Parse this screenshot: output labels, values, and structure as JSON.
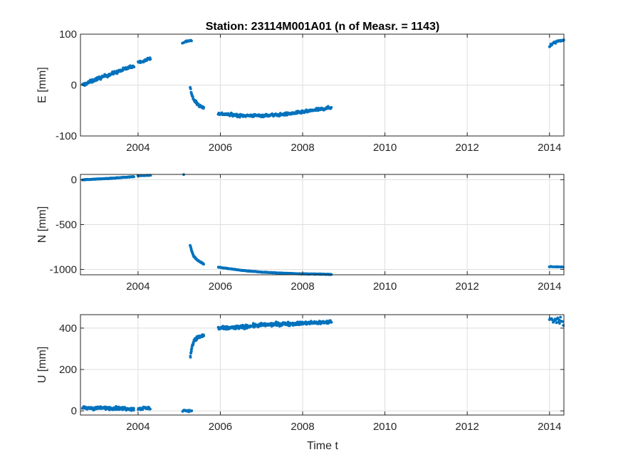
{
  "chart_data": {
    "type": "scatter",
    "title": "Station: 23114M001A01 (n of Measr. = 1143)",
    "xlabel": "Time t",
    "x_ticks": [
      2004,
      2006,
      2008,
      2010,
      2012,
      2014
    ],
    "x_tick_labels": [
      "2004",
      "2006",
      "2008",
      "2010",
      "2012",
      "2014"
    ],
    "xlim": [
      2002.6,
      2014.35
    ],
    "grid": true,
    "marker_color": "#0072BD",
    "panels": [
      {
        "ylabel": "E [mm]",
        "ylim": [
          -100,
          100
        ],
        "y_ticks": [
          -100,
          0,
          100
        ],
        "y_tick_labels": [
          "-100",
          "0",
          "100"
        ],
        "segments": [
          {
            "t": [
              2002.65,
              2003.0,
              2003.5,
              2003.9
            ],
            "v": [
              0,
              12,
              26,
              38
            ],
            "noise": 3,
            "n": 150
          },
          {
            "t": [
              2004.0,
              2004.15,
              2004.3
            ],
            "v": [
              45,
              48,
              53
            ],
            "noise": 2,
            "n": 25
          },
          {
            "t": [
              2005.08,
              2005.2,
              2005.3
            ],
            "v": [
              83,
              86,
              88
            ],
            "noise": 1.5,
            "n": 15
          },
          {
            "t": [
              2005.27,
              2005.3,
              2005.35,
              2005.45,
              2005.6
            ],
            "v": [
              -5,
              -18,
              -28,
              -38,
              -45
            ],
            "noise": 2.5,
            "n": 60
          },
          {
            "t": [
              2005.95,
              2006.5,
              2007.0,
              2007.5,
              2008.0,
              2008.7
            ],
            "v": [
              -56,
              -60,
              -60,
              -58,
              -53,
              -44
            ],
            "noise": 2.5,
            "n": 340
          },
          {
            "t": [
              2014.0,
              2014.15,
              2014.35
            ],
            "v": [
              77,
              85,
              90
            ],
            "noise": 3,
            "n": 22
          }
        ]
      },
      {
        "ylabel": "N [mm]",
        "ylim": [
          -1060,
          60
        ],
        "y_ticks": [
          -1000,
          -500,
          0
        ],
        "y_tick_labels": [
          "-1000",
          "-500",
          "0"
        ],
        "segments": [
          {
            "t": [
              2002.65,
              2003.3,
              2003.9
            ],
            "v": [
              0,
              15,
              35
            ],
            "noise": 3,
            "n": 150
          },
          {
            "t": [
              2004.0,
              2004.3
            ],
            "v": [
              45,
              50
            ],
            "noise": 2,
            "n": 25
          },
          {
            "t": [
              2005.08,
              2005.3
            ],
            "v": [
              60,
              62
            ],
            "noise": 2,
            "n": 15
          },
          {
            "t": [
              2005.27,
              2005.3,
              2005.35,
              2005.45,
              2005.6
            ],
            "v": [
              -730,
              -790,
              -850,
              -900,
              -940
            ],
            "noise": 4,
            "n": 60
          },
          {
            "t": [
              2005.95,
              2006.5,
              2007.0,
              2007.5,
              2008.0,
              2008.7
            ],
            "v": [
              -975,
              -1010,
              -1030,
              -1042,
              -1050,
              -1055
            ],
            "noise": 3,
            "n": 340
          },
          {
            "t": [
              2014.0,
              2014.35
            ],
            "v": [
              -970,
              -972
            ],
            "noise": 3,
            "n": 22
          }
        ]
      },
      {
        "ylabel": "U [mm]",
        "ylim": [
          -20,
          465
        ],
        "y_ticks": [
          0,
          200,
          400
        ],
        "y_tick_labels": [
          "0",
          "200",
          "400"
        ],
        "segments": [
          {
            "t": [
              2002.65,
              2003.3,
              2003.9
            ],
            "v": [
              12,
              14,
              10
            ],
            "noise": 7,
            "n": 150
          },
          {
            "t": [
              2004.0,
              2004.3
            ],
            "v": [
              12,
              12
            ],
            "noise": 8,
            "n": 25
          },
          {
            "t": [
              2005.08,
              2005.3
            ],
            "v": [
              2,
              0
            ],
            "noise": 5,
            "n": 15
          },
          {
            "t": [
              2005.27,
              2005.3,
              2005.35,
              2005.45,
              2005.6
            ],
            "v": [
              255,
              300,
              335,
              355,
              365
            ],
            "noise": 8,
            "n": 60
          },
          {
            "t": [
              2005.95,
              2006.5,
              2007.0,
              2007.5,
              2008.0,
              2008.7
            ],
            "v": [
              398,
              405,
              415,
              420,
              423,
              430
            ],
            "noise": 8,
            "n": 340
          },
          {
            "t": [
              2014.0,
              2014.2,
              2014.35
            ],
            "v": [
              440,
              440,
              430
            ],
            "noise": 15,
            "n": 22
          }
        ]
      }
    ]
  }
}
